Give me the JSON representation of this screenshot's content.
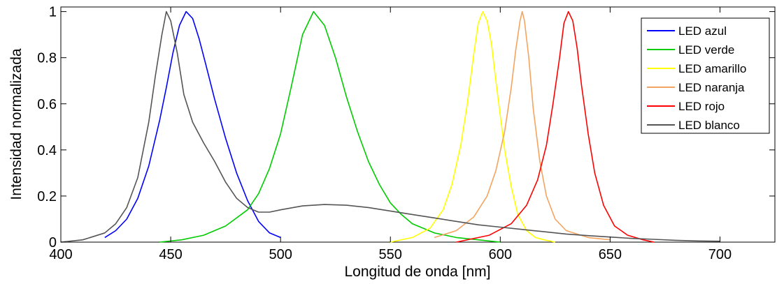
{
  "chart_data": {
    "type": "line",
    "title": "",
    "xlabel": "Longitud de onda [nm]",
    "ylabel": "Intensidad normalizada",
    "xlim": [
      400,
      725
    ],
    "ylim": [
      0,
      1.02
    ],
    "xticks": [
      400,
      450,
      500,
      550,
      600,
      650,
      700
    ],
    "yticks": [
      0,
      0.2,
      0.4,
      0.6,
      0.8,
      1
    ],
    "xtick_labels": [
      "400",
      "450",
      "500",
      "550",
      "600",
      "650",
      "700"
    ],
    "ytick_labels": [
      "0",
      "0.2",
      "0.4",
      "0.6",
      "0.8",
      "1"
    ],
    "grid": false,
    "legend_position": "top-right",
    "series": [
      {
        "name": "LED azul",
        "color": "#0000ff",
        "x": [
          420,
          425,
          430,
          435,
          440,
          445,
          448,
          451,
          454,
          457,
          460,
          463,
          466,
          470,
          475,
          480,
          485,
          490,
          495,
          500
        ],
        "y": [
          0.02,
          0.05,
          0.1,
          0.19,
          0.33,
          0.53,
          0.67,
          0.82,
          0.94,
          1.0,
          0.97,
          0.88,
          0.77,
          0.62,
          0.45,
          0.3,
          0.18,
          0.09,
          0.04,
          0.02
        ]
      },
      {
        "name": "LED verde",
        "color": "#00cc00",
        "x": [
          445,
          455,
          465,
          475,
          485,
          490,
          495,
          500,
          505,
          510,
          515,
          520,
          525,
          530,
          535,
          540,
          545,
          550,
          555,
          560,
          570,
          580,
          590,
          600
        ],
        "y": [
          0.0,
          0.01,
          0.03,
          0.07,
          0.14,
          0.21,
          0.32,
          0.47,
          0.68,
          0.9,
          1.0,
          0.94,
          0.8,
          0.63,
          0.48,
          0.35,
          0.25,
          0.17,
          0.12,
          0.08,
          0.04,
          0.02,
          0.01,
          0.0
        ]
      },
      {
        "name": "LED amarillo",
        "color": "#ffff00",
        "x": [
          550,
          560,
          568,
          574,
          578,
          582,
          585,
          588,
          590,
          592,
          594,
          596,
          598,
          600,
          602,
          605,
          608,
          612,
          616,
          620,
          625
        ],
        "y": [
          0.0,
          0.02,
          0.06,
          0.14,
          0.25,
          0.42,
          0.6,
          0.82,
          0.95,
          1.0,
          0.96,
          0.86,
          0.7,
          0.55,
          0.4,
          0.24,
          0.12,
          0.05,
          0.02,
          0.01,
          0.0
        ]
      },
      {
        "name": "LED naranja",
        "color": "#f4a460",
        "x": [
          570,
          580,
          588,
          594,
          598,
          602,
          605,
          607,
          609,
          610,
          611,
          613,
          615,
          618,
          621,
          625,
          630,
          640,
          650
        ],
        "y": [
          0.02,
          0.05,
          0.11,
          0.2,
          0.31,
          0.48,
          0.67,
          0.83,
          0.96,
          1.0,
          0.96,
          0.8,
          0.58,
          0.35,
          0.2,
          0.1,
          0.05,
          0.02,
          0.01
        ]
      },
      {
        "name": "LED rojo",
        "color": "#ff0000",
        "x": [
          580,
          595,
          605,
          612,
          617,
          621,
          624,
          627,
          629,
          631,
          633,
          635,
          637,
          640,
          643,
          647,
          652,
          658,
          665,
          670
        ],
        "y": [
          0.0,
          0.03,
          0.08,
          0.16,
          0.27,
          0.42,
          0.6,
          0.8,
          0.95,
          1.0,
          0.96,
          0.84,
          0.68,
          0.47,
          0.3,
          0.16,
          0.07,
          0.03,
          0.01,
          0.0
        ]
      },
      {
        "name": "LED blanco",
        "color": "#555555",
        "x": [
          400,
          410,
          420,
          425,
          430,
          435,
          440,
          443,
          446,
          448,
          450,
          453,
          456,
          460,
          465,
          470,
          475,
          480,
          485,
          490,
          495,
          500,
          510,
          520,
          530,
          540,
          550,
          560,
          570,
          580,
          590,
          600,
          610,
          620,
          630,
          640,
          650,
          660,
          670,
          680,
          690,
          700
        ],
        "y": [
          0.0,
          0.01,
          0.04,
          0.08,
          0.15,
          0.28,
          0.52,
          0.72,
          0.9,
          1.0,
          0.96,
          0.82,
          0.64,
          0.52,
          0.43,
          0.35,
          0.26,
          0.19,
          0.15,
          0.13,
          0.13,
          0.14,
          0.157,
          0.163,
          0.16,
          0.15,
          0.135,
          0.12,
          0.105,
          0.09,
          0.075,
          0.065,
          0.055,
          0.045,
          0.035,
          0.028,
          0.022,
          0.016,
          0.012,
          0.008,
          0.005,
          0.004
        ]
      }
    ]
  }
}
